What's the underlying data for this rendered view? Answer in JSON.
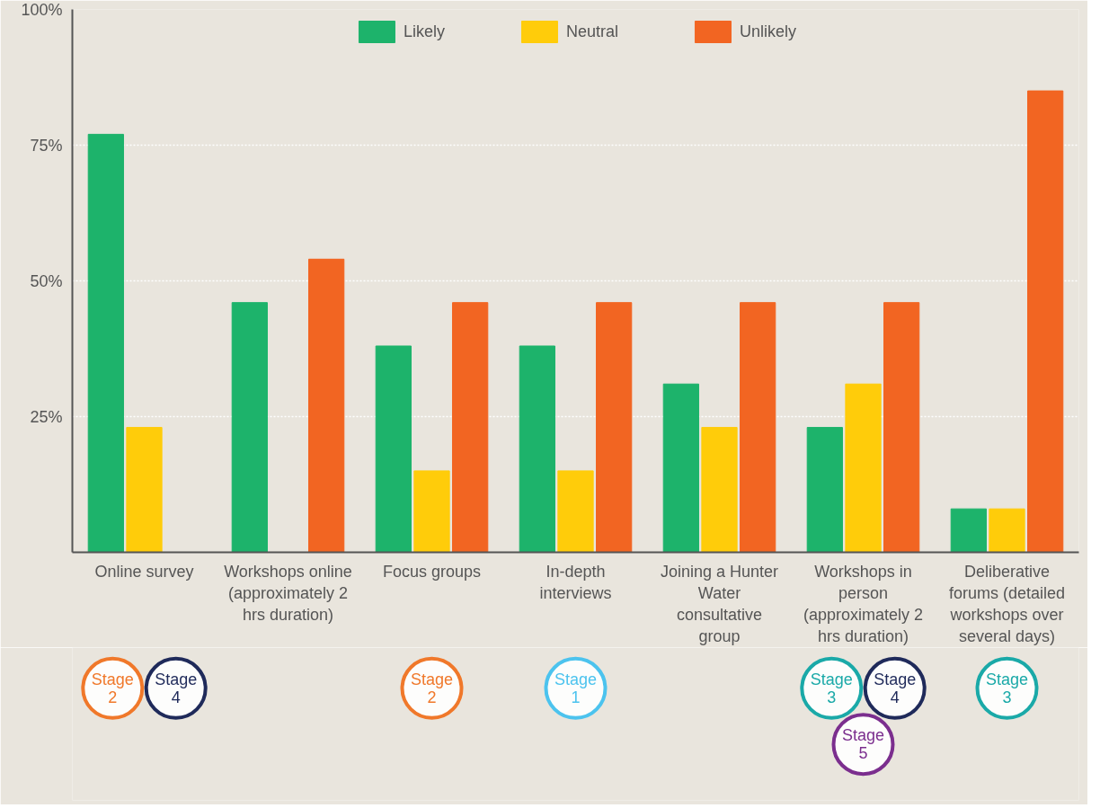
{
  "chart_data": {
    "type": "bar",
    "categories": [
      "Online survey",
      "Workshops online (approximately 2 hrs duration)",
      "Focus groups",
      "In-depth interviews",
      "Joining a Hunter Water consultative group",
      "Workshops in person (approximately 2 hrs duration)",
      "Deliberative forums (detailed workshops over several days)"
    ],
    "series": [
      {
        "name": "Likely",
        "color": "#1db36b",
        "values": [
          77,
          46,
          38,
          38,
          31,
          23,
          8
        ]
      },
      {
        "name": "Neutral",
        "color": "#ffcc0a",
        "values": [
          23,
          null,
          15,
          15,
          23,
          31,
          8
        ]
      },
      {
        "name": "Unlikely",
        "color": "#f26522",
        "values": [
          null,
          54,
          46,
          46,
          46,
          46,
          85
        ]
      }
    ],
    "ylim": [
      0,
      100
    ],
    "yticks": [
      {
        "value": 25,
        "label": "25%"
      },
      {
        "value": 50,
        "label": "50%"
      },
      {
        "value": 75,
        "label": "75%"
      },
      {
        "value": 100,
        "label": "100%"
      }
    ],
    "grid": "y",
    "legend": "top",
    "annotations": [
      "Stage 2",
      "Stage 4",
      "Stage 2",
      "Stage 1",
      "Stage 3",
      "Stage 4",
      "Stage 5",
      "Stage 3"
    ]
  }
}
